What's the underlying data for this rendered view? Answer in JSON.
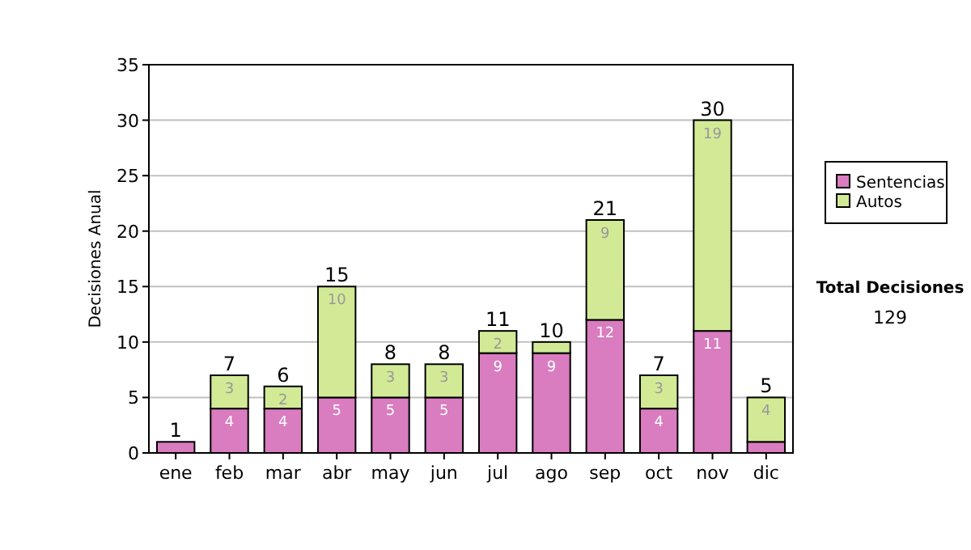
{
  "chart_data": {
    "type": "bar",
    "stacked": true,
    "ylabel": "Decisiones Anual",
    "categories": [
      "ene",
      "feb",
      "mar",
      "abr",
      "may",
      "jun",
      "jul",
      "ago",
      "sep",
      "oct",
      "nov",
      "dic"
    ],
    "series": [
      {
        "name": "Sentencias",
        "color": "#d97cc0",
        "values": [
          1,
          4,
          4,
          5,
          5,
          5,
          9,
          9,
          12,
          4,
          11,
          1
        ],
        "value_labels": [
          null,
          "4",
          "4",
          "5",
          "5",
          "5",
          "9",
          "9",
          "12",
          "4",
          "11",
          null
        ]
      },
      {
        "name": "Autos",
        "color": "#d2ea96",
        "values": [
          null,
          3,
          2,
          10,
          3,
          3,
          2,
          1,
          9,
          3,
          19,
          4
        ],
        "value_labels": [
          null,
          "3",
          "2",
          "10",
          "3",
          "3",
          "2",
          null,
          "9",
          "3",
          "19",
          "4"
        ]
      }
    ],
    "totals": [
      "1",
      "7",
      "6",
      "15",
      "8",
      "8",
      "11",
      "10",
      "21",
      "7",
      "30",
      "5"
    ],
    "ylim": [
      0,
      35
    ],
    "yticks": [
      0,
      5,
      10,
      15,
      20,
      25,
      30,
      35
    ],
    "grid": "y",
    "legend": "right",
    "annotations": [
      "Total Decisiones",
      "129"
    ]
  }
}
